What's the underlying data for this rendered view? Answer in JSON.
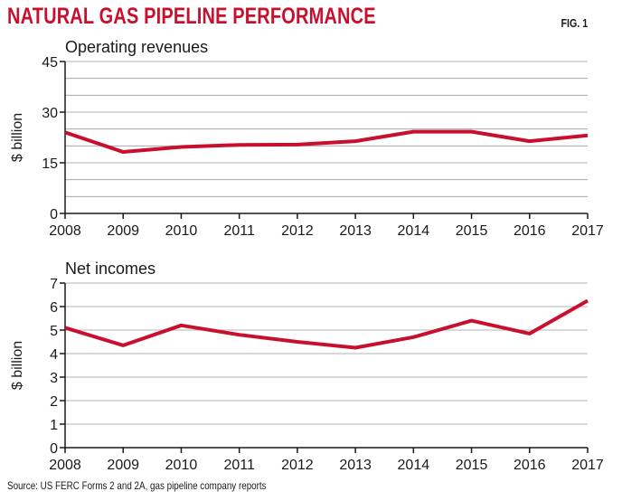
{
  "header": {
    "title": "NATURAL GAS PIPELINE PERFORMANCE",
    "fig_label": "FIG. 1"
  },
  "source": "Source: US FERC Forms 2 and 2A, gas pipeline company reports",
  "chart_data": [
    {
      "type": "line",
      "title": "Operating revenues",
      "xlabel": "",
      "ylabel": "$ billion",
      "x": [
        "2008",
        "2009",
        "2010",
        "2011",
        "2012",
        "2013",
        "2014",
        "2015",
        "2016",
        "2017"
      ],
      "series": [
        {
          "values": [
            24,
            18.2,
            19.7,
            20.3,
            20.4,
            21.4,
            24.2,
            24.2,
            21.4,
            23.1
          ]
        }
      ],
      "ylim": [
        0,
        45
      ],
      "yticks": [
        0,
        15,
        30,
        45
      ],
      "ygrid_step": 5,
      "grid": true,
      "colors": {
        "line": "#c8102e",
        "grid": "#9a9a9a",
        "axis": "#1a1a1a"
      }
    },
    {
      "type": "line",
      "title": "Net incomes",
      "xlabel": "",
      "ylabel": "$ billion",
      "x": [
        "2008",
        "2009",
        "2010",
        "2011",
        "2012",
        "2013",
        "2014",
        "2015",
        "2016",
        "2017"
      ],
      "series": [
        {
          "values": [
            5.1,
            4.35,
            5.2,
            4.8,
            4.5,
            4.25,
            4.7,
            5.4,
            4.85,
            6.25
          ]
        }
      ],
      "ylim": [
        0,
        7
      ],
      "yticks": [
        0,
        1,
        2,
        3,
        4,
        5,
        6,
        7
      ],
      "ygrid_step": 1,
      "grid": true,
      "colors": {
        "line": "#c8102e",
        "grid": "#9a9a9a",
        "axis": "#1a1a1a"
      }
    }
  ]
}
